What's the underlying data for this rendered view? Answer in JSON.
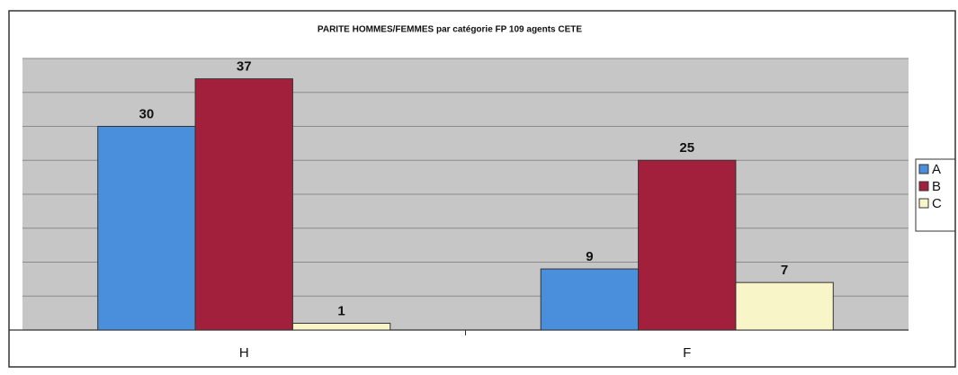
{
  "chart_data": {
    "type": "bar",
    "title": "PARITE HOMMES/FEMMES par catégorie FP  109 agents CETE",
    "categories": [
      "H",
      "F"
    ],
    "series": [
      {
        "name": "A",
        "color": "#4a8fdc",
        "values": [
          30,
          9
        ]
      },
      {
        "name": "B",
        "color": "#a3203c",
        "values": [
          37,
          25
        ]
      },
      {
        "name": "C",
        "color": "#f8f6c8",
        "values": [
          1,
          7
        ]
      }
    ],
    "ylim": [
      0,
      40
    ],
    "yticks": [
      0,
      5,
      10,
      15,
      20,
      25,
      30,
      35,
      40
    ],
    "grid": true,
    "legend": "right"
  }
}
